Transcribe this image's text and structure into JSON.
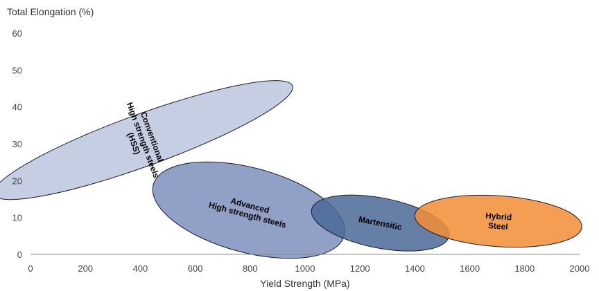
{
  "chart_data": {
    "type": "scatter",
    "title": "",
    "xlabel": "Yield Strength (MPa)",
    "ylabel": "Total Elongation (%)",
    "xlim": [
      0,
      2000
    ],
    "ylim": [
      0,
      60
    ],
    "xticks": [
      0,
      200,
      400,
      600,
      800,
      1000,
      1200,
      1400,
      1600,
      1800,
      2000
    ],
    "yticks": [
      0,
      10,
      20,
      30,
      40,
      50,
      60
    ],
    "grid": false,
    "series": [
      {
        "key": "hss",
        "label_lines": [
          "Conventional",
          "High strength steels",
          "(HSS)"
        ],
        "color": "#c3cbe3",
        "center": [
          410,
          31
        ],
        "radius": [
          95,
          43
        ],
        "rotation": 70
      },
      {
        "key": "ahss",
        "label_lines": [
          "Advanced",
          "High strength steels"
        ],
        "color": "#7d8fbd",
        "center": [
          795,
          12
        ],
        "radius": [
          360,
          11.5
        ],
        "rotation": 15
      },
      {
        "key": "martensitic",
        "label_lines": [
          "Martensitic"
        ],
        "color": "#4a6898",
        "center": [
          1274,
          8.5
        ],
        "radius": [
          255,
          6.8
        ],
        "rotation": 11
      },
      {
        "key": "hybrid",
        "label_lines": [
          "Hybrid",
          "Steel"
        ],
        "color": "#f28d35",
        "center": [
          1704,
          9
        ],
        "radius": [
          305,
          6.9
        ],
        "rotation": 4
      }
    ]
  }
}
